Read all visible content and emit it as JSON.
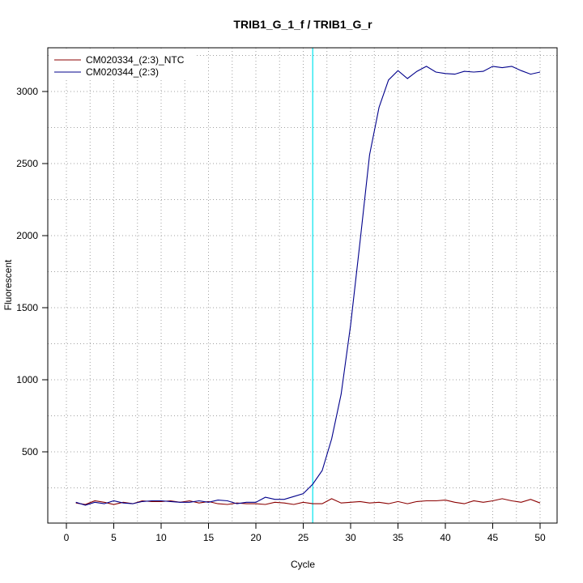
{
  "chart_data": {
    "type": "line",
    "title": "TRIB1_G_1_f / TRIB1_G_r",
    "xlabel": "Cycle",
    "ylabel": "Fluorescent",
    "xlim": [
      1,
      50
    ],
    "ylim": [
      130,
      3210
    ],
    "x_ticks": [
      0,
      5,
      10,
      15,
      20,
      25,
      30,
      35,
      40,
      45,
      50
    ],
    "y_ticks": [
      500,
      1000,
      1500,
      2000,
      2500,
      3000
    ],
    "grid": true,
    "threshold_cycle": 26,
    "legend_position": "top-left",
    "colors": {
      "series_ntc": "#8b0000",
      "series_sample": "#00008b",
      "threshold": "#00e5ee",
      "grid": "#a0a0a0",
      "axis": "#000000"
    },
    "x": [
      1,
      2,
      3,
      4,
      5,
      6,
      7,
      8,
      9,
      10,
      11,
      12,
      13,
      14,
      15,
      16,
      17,
      18,
      19,
      20,
      21,
      22,
      23,
      24,
      25,
      26,
      27,
      28,
      29,
      30,
      31,
      32,
      33,
      34,
      35,
      36,
      37,
      38,
      39,
      40,
      41,
      42,
      43,
      44,
      45,
      46,
      47,
      48,
      49,
      50
    ],
    "series": [
      {
        "name": "CM020334_(2:3)_NTC",
        "color": "#8b0000",
        "values": [
          145,
          135,
          160,
          150,
          135,
          150,
          140,
          160,
          155,
          155,
          160,
          150,
          160,
          145,
          155,
          140,
          135,
          145,
          140,
          140,
          135,
          150,
          145,
          135,
          150,
          140,
          140,
          175,
          145,
          150,
          155,
          145,
          150,
          140,
          155,
          140,
          155,
          160,
          160,
          165,
          150,
          140,
          160,
          150,
          160,
          175,
          160,
          150,
          170,
          145
        ]
      },
      {
        "name": "CM020344_(2:3)",
        "color": "#00008b",
        "values": [
          150,
          130,
          150,
          140,
          160,
          145,
          140,
          155,
          160,
          160,
          155,
          150,
          150,
          160,
          150,
          165,
          160,
          140,
          150,
          150,
          185,
          170,
          170,
          190,
          210,
          275,
          370,
          590,
          900,
          1380,
          1960,
          2560,
          2890,
          3080,
          3145,
          3090,
          3140,
          3175,
          3135,
          3125,
          3120,
          3140,
          3135,
          3140,
          3175,
          3165,
          3175,
          3145,
          3120,
          3135
        ]
      }
    ]
  }
}
